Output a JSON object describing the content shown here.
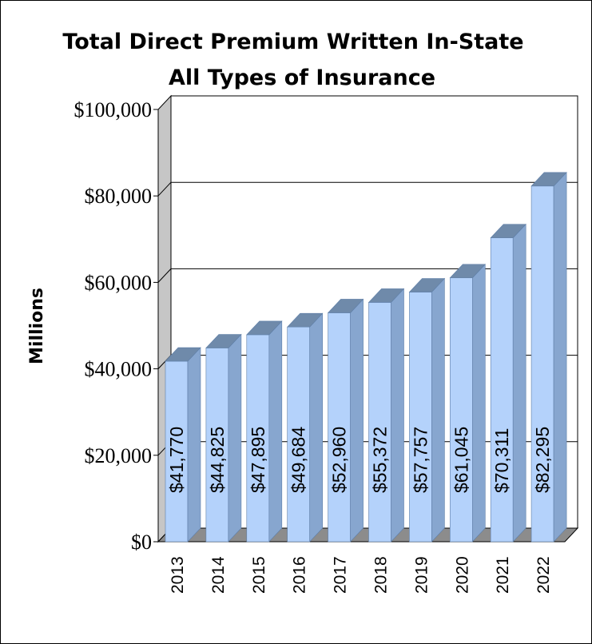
{
  "chart_data": {
    "type": "bar",
    "title": "Total Direct Premium Written In-State",
    "subtitle": "All Types of Insurance",
    "ylabel": "Millions",
    "xlabel": "",
    "categories": [
      "2013",
      "2014",
      "2015",
      "2016",
      "2017",
      "2018",
      "2019",
      "2020",
      "2021",
      "2022"
    ],
    "values": [
      41770,
      44825,
      47895,
      49684,
      52960,
      55372,
      57757,
      61045,
      70311,
      82295
    ],
    "data_labels": [
      "$41,770",
      "$44,825",
      "$47,895",
      "$49,684",
      "$52,960",
      "$55,372",
      "$57,757",
      "$61,045",
      "$70,311",
      "$82,295"
    ],
    "yticks": [
      0,
      20000,
      40000,
      60000,
      80000,
      100000
    ],
    "ytick_labels": [
      "$0",
      "$20,000",
      "$40,000",
      "$60,000",
      "$80,000",
      "$100,000"
    ],
    "ylim": [
      0,
      100000
    ],
    "grid": true,
    "legend": "none",
    "style": "3d",
    "colors": {
      "bar_front": "#b4d2fb",
      "bar_side": "#87a6cf",
      "bar_top": "#6f8aaa",
      "wall_side": "#c6c6c6",
      "floor": "#8c8c8c",
      "grid": "#000000"
    }
  }
}
